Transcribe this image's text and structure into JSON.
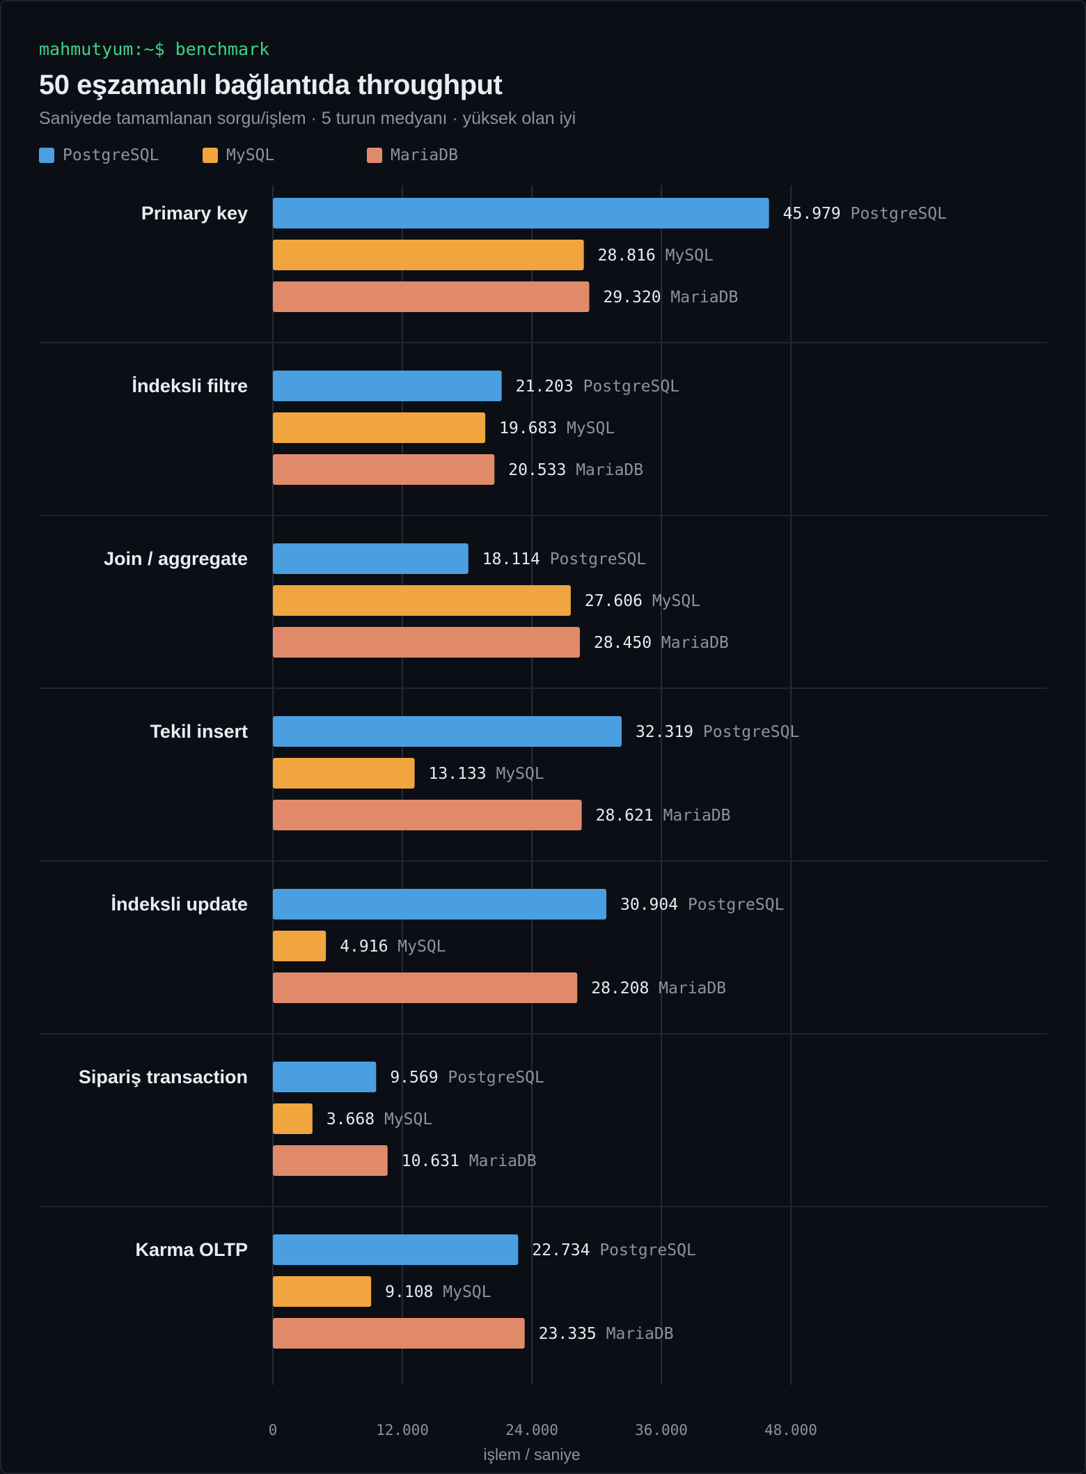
{
  "header": {
    "prompt": "mahmutyum:~$ benchmark",
    "title": "50 eşzamanlı bağlantıda throughput",
    "subtitle": "Saniyede tamamlanan sorgu/işlem · 5 turun medyanı · yüksek olan iyi"
  },
  "legend": [
    {
      "label": "PostgreSQL",
      "color": "#4a9fe0"
    },
    {
      "label": "MySQL",
      "color": "#f0a53e"
    },
    {
      "label": "MariaDB",
      "color": "#e08a6a"
    }
  ],
  "chart_data": {
    "type": "bar",
    "orientation": "horizontal",
    "title": "50 eşzamanlı bağlantıda throughput",
    "subtitle": "Saniyede tamamlanan sorgu/işlem · 5 turun medyanı · yüksek olan iyi",
    "xlabel": "işlem / saniye",
    "ylabel": "",
    "xlim": [
      0,
      52000
    ],
    "xticks": [
      0,
      12000,
      24000,
      36000,
      48000
    ],
    "xtick_labels": [
      "0",
      "12.000",
      "24.000",
      "36.000",
      "48.000"
    ],
    "grid": "vertical",
    "legend_position": "top-left",
    "categories": [
      "Primary key",
      "İndeksli filtre",
      "Join / aggregate",
      "Tekil insert",
      "İndeksli update",
      "Sipariş transaction",
      "Karma OLTP"
    ],
    "series": [
      {
        "name": "PostgreSQL",
        "color": "#4a9fe0",
        "values": [
          45979,
          21203,
          18114,
          32319,
          30904,
          9569,
          22734
        ],
        "labels": [
          "45.979",
          "21.203",
          "18.114",
          "32.319",
          "30.904",
          "9.569",
          "22.734"
        ]
      },
      {
        "name": "MySQL",
        "color": "#f0a53e",
        "values": [
          28816,
          19683,
          27606,
          13133,
          4916,
          3668,
          9108
        ],
        "labels": [
          "28.816",
          "19.683",
          "27.606",
          "13.133",
          "4.916",
          "3.668",
          "9.108"
        ]
      },
      {
        "name": "MariaDB",
        "color": "#e08a6a",
        "values": [
          29320,
          20533,
          28450,
          28621,
          28208,
          10631,
          23335
        ],
        "labels": [
          "29.320",
          "20.533",
          "28.450",
          "28.621",
          "28.208",
          "10.631",
          "23.335"
        ]
      }
    ]
  }
}
